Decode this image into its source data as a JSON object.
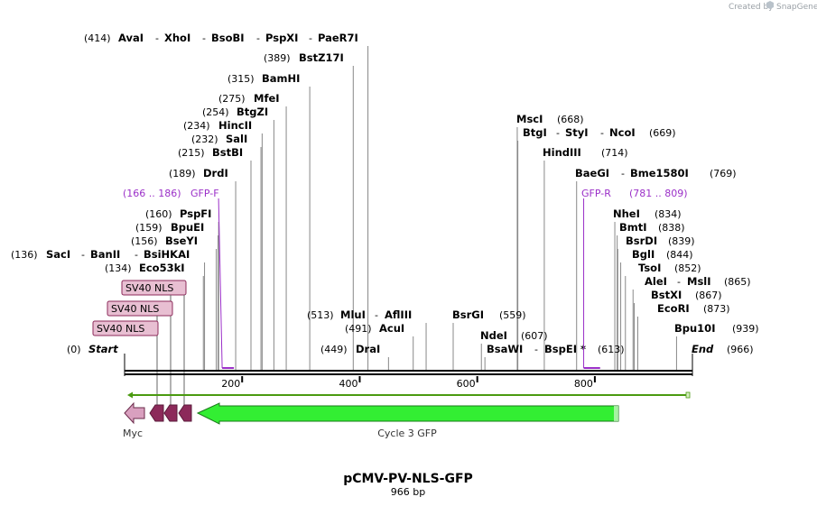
{
  "credit": {
    "text": "Created by",
    "brand": "SnapGene"
  },
  "map": {
    "title": "pCMV-PV-NLS-GFP",
    "length_label": "966 bp",
    "total_bp": 966,
    "ticks": [
      200,
      400,
      600,
      800
    ],
    "start_label": "Start",
    "end_label": "End",
    "start_pos": "(0)",
    "end_pos": "(966)"
  },
  "site_rows": [
    {
      "pos": "(414)",
      "names": [
        "AvaI",
        "XhoI",
        "BsoBI",
        "PspXI",
        "PaeR7I"
      ],
      "bp": 414
    },
    {
      "pos": "(389)",
      "names": [
        "BstZ17I"
      ],
      "bp": 389
    },
    {
      "pos": "(315)",
      "names": [
        "BamHI"
      ],
      "bp": 315
    },
    {
      "pos": "(275)",
      "names": [
        "MfeI"
      ],
      "bp": 275
    },
    {
      "pos": "(254)",
      "names": [
        "BtgZI"
      ],
      "bp": 254
    },
    {
      "pos": "(234)",
      "names": [
        "HincII"
      ],
      "bp": 234
    },
    {
      "pos": "(232)",
      "names": [
        "SalI"
      ],
      "bp": 232
    },
    {
      "pos": "(215)",
      "names": [
        "BstBI"
      ],
      "bp": 215
    },
    {
      "pos": "(189)",
      "names": [
        "DrdI"
      ],
      "bp": 189
    },
    {
      "pos": "(160)",
      "names": [
        "PspFI"
      ],
      "bp": 160
    },
    {
      "pos": "(159)",
      "names": [
        "BpuEI"
      ],
      "bp": 159
    },
    {
      "pos": "(156)",
      "names": [
        "BseYI"
      ],
      "bp": 156
    },
    {
      "pos": "(136)",
      "names": [
        "SacI",
        "BanII",
        "BsiHKAI"
      ],
      "bp": 136
    },
    {
      "pos": "(134)",
      "names": [
        "Eco53kI"
      ],
      "bp": 134
    },
    {
      "pos": "(513)",
      "names": [
        "MluI",
        "AflIII"
      ],
      "bp": 513
    },
    {
      "pos": "(491)",
      "names": [
        "AcuI"
      ],
      "bp": 491
    },
    {
      "pos": "(449)",
      "names": [
        "DraI"
      ],
      "bp": 449
    },
    {
      "pos": "(559)",
      "names": [
        "BsrGI"
      ],
      "bp": 559
    },
    {
      "pos": "(607)",
      "names": [
        "NdeI"
      ],
      "bp": 607
    },
    {
      "pos": "(613)",
      "names": [
        "BsaWI",
        "BspEI *"
      ],
      "bp": 613
    },
    {
      "pos": "(668)",
      "names": [
        "MscI"
      ],
      "bp": 668
    },
    {
      "pos": "(669)",
      "names": [
        "BtgI",
        "StyI",
        "NcoI"
      ],
      "bp": 669
    },
    {
      "pos": "(714)",
      "names": [
        "HindIII"
      ],
      "bp": 714
    },
    {
      "pos": "(769)",
      "names": [
        "BaeGI",
        "Bme1580I"
      ],
      "bp": 769
    },
    {
      "pos": "(834)",
      "names": [
        "NheI"
      ],
      "bp": 834
    },
    {
      "pos": "(838)",
      "names": [
        "BmtI"
      ],
      "bp": 838
    },
    {
      "pos": "(839)",
      "names": [
        "BsrDI"
      ],
      "bp": 839
    },
    {
      "pos": "(844)",
      "names": [
        "BglI"
      ],
      "bp": 844
    },
    {
      "pos": "(852)",
      "names": [
        "TsoI"
      ],
      "bp": 852
    },
    {
      "pos": "(865)",
      "names": [
        "AleI",
        "MslI"
      ],
      "bp": 865
    },
    {
      "pos": "(867)",
      "names": [
        "BstXI"
      ],
      "bp": 867
    },
    {
      "pos": "(873)",
      "names": [
        "EcoRI"
      ],
      "bp": 873
    },
    {
      "pos": "(939)",
      "names": [
        "Bpu10I"
      ],
      "bp": 939
    }
  ],
  "primers": [
    {
      "name": "GFP-F",
      "range": "(166 .. 186)",
      "start": 166,
      "end": 186
    },
    {
      "name": "GFP-R",
      "range": "(781 .. 809)",
      "start": 781,
      "end": 809
    }
  ],
  "nls_labels": [
    "SV40 NLS",
    "SV40 NLS",
    "SV40 NLS"
  ],
  "features": [
    {
      "name": "Myc",
      "start": 0,
      "end": 30,
      "color": "#d9a0bf"
    },
    {
      "name": "Cycle 3 GFP",
      "start": 125,
      "end": 848,
      "color": "#33ee33"
    }
  ],
  "colors": {
    "primer": "#9b30c8",
    "nls_fill": "#e8bfd2",
    "nls_arrow": "#8c2a5a",
    "gfp": "#33ee33",
    "orf": "#4a9a10"
  }
}
